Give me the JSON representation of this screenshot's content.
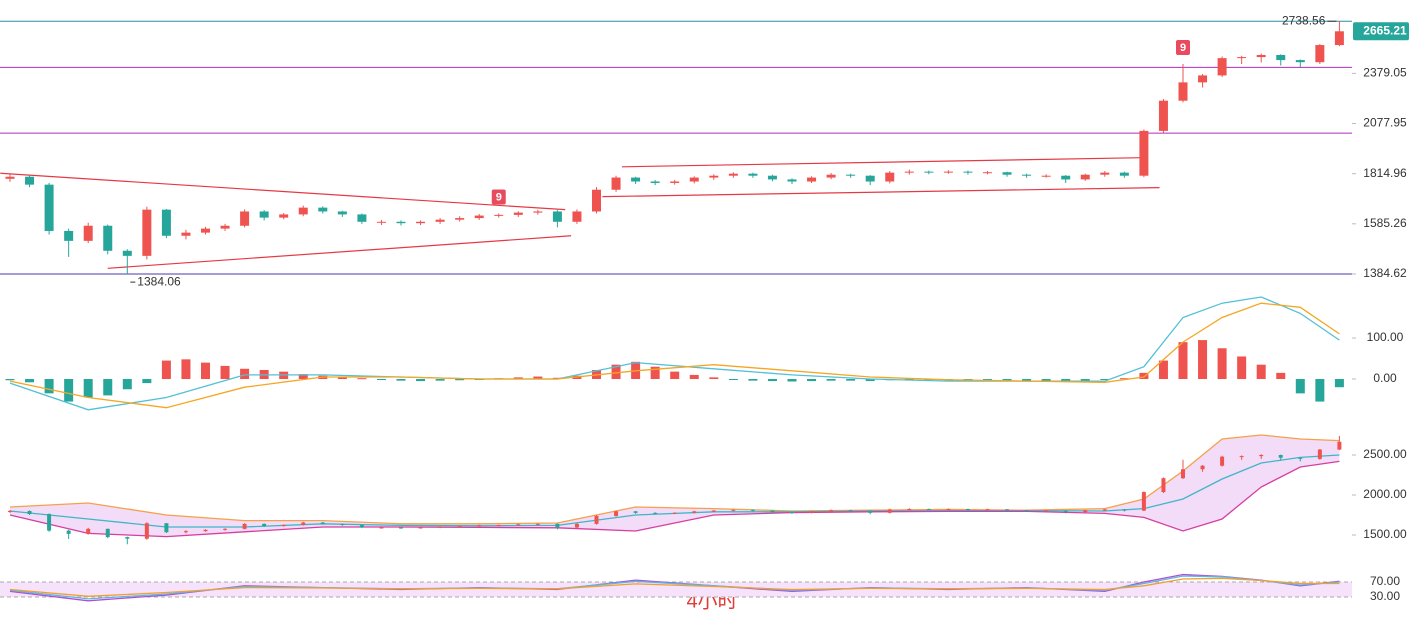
{
  "watermark": "4小时",
  "chart_data": [
    {
      "type": "candlestick",
      "log_scale": true,
      "ylim": [
        1326,
        2900
      ],
      "yticks": [
        1384.62,
        1585.26,
        1814.96,
        2077.95,
        2379.05
      ],
      "up_color": "#ef5350",
      "down_color": "#26a69a",
      "series": [
        {
          "open": [
            1790,
            1800,
            1762,
            1555,
            1514,
            1577,
            1474,
            1454,
            1647,
            1535,
            1548,
            1565,
            1577,
            1639,
            1612,
            1626,
            1656,
            1639,
            1626,
            1594,
            1594,
            1588,
            1594,
            1603,
            1610,
            1621,
            1624,
            1634,
            1639,
            1594,
            1639,
            1738,
            1796,
            1777,
            1770,
            1777,
            1796,
            1805,
            1815,
            1805,
            1787,
            1777,
            1796,
            1810,
            1805,
            1777,
            1820,
            1825,
            1822,
            1825,
            1820,
            1822,
            1810,
            1805,
            1805,
            1787,
            1810,
            1820,
            1805,
            2037,
            2210,
            2322,
            2366,
            2479,
            2486,
            2500,
            2466,
            2452,
            2568
          ],
          "high": [
            1812,
            1808,
            1770,
            1565,
            1590,
            1582,
            1480,
            1660,
            1650,
            1560,
            1572,
            1585,
            1648,
            1645,
            1632,
            1665,
            1662,
            1642,
            1630,
            1602,
            1600,
            1600,
            1610,
            1618,
            1628,
            1630,
            1640,
            1646,
            1645,
            1648,
            1750,
            1805,
            1800,
            1784,
            1785,
            1802,
            1812,
            1822,
            1820,
            1810,
            1792,
            1802,
            1818,
            1815,
            1808,
            1828,
            1835,
            1830,
            1832,
            1830,
            1828,
            1825,
            1815,
            1812,
            1808,
            1815,
            1828,
            1825,
            2045,
            2220,
            2440,
            2375,
            2490,
            2495,
            2510,
            2505,
            2470,
            2575,
            2738.56
          ],
          "low": [
            1775,
            1750,
            1540,
            1450,
            1505,
            1460,
            1384.06,
            1440,
            1525,
            1520,
            1540,
            1555,
            1570,
            1600,
            1605,
            1618,
            1630,
            1615,
            1585,
            1580,
            1578,
            1580,
            1585,
            1595,
            1602,
            1612,
            1615,
            1625,
            1570,
            1585,
            1630,
            1728,
            1765,
            1760,
            1762,
            1768,
            1785,
            1795,
            1795,
            1778,
            1765,
            1770,
            1788,
            1795,
            1760,
            1768,
            1810,
            1812,
            1815,
            1810,
            1812,
            1800,
            1795,
            1796,
            1770,
            1780,
            1800,
            1795,
            1798,
            2025,
            2200,
            2290,
            2355,
            2440,
            2450,
            2430,
            2420,
            2440,
            2560
          ],
          "close": [
            1800,
            1762,
            1555,
            1514,
            1577,
            1474,
            1454,
            1647,
            1535,
            1548,
            1565,
            1577,
            1639,
            1612,
            1626,
            1656,
            1639,
            1626,
            1594,
            1594,
            1588,
            1594,
            1603,
            1610,
            1621,
            1624,
            1634,
            1639,
            1594,
            1639,
            1738,
            1796,
            1777,
            1770,
            1777,
            1796,
            1805,
            1815,
            1805,
            1787,
            1777,
            1796,
            1810,
            1805,
            1777,
            1820,
            1825,
            1822,
            1825,
            1820,
            1822,
            1810,
            1805,
            1805,
            1787,
            1810,
            1820,
            1805,
            2037,
            2210,
            2322,
            2366,
            2479,
            2486,
            2500,
            2466,
            2452,
            2568,
            2665.21
          ]
        }
      ],
      "levels": [
        {
          "value": 2738.56,
          "color": "#2a8fa8"
        },
        {
          "value": 2418,
          "color": "#b02cc0"
        },
        {
          "value": 2025,
          "color": "#b02cc0"
        },
        {
          "value": 1384.62,
          "color": "#4a3aa8"
        }
      ],
      "trendlines": [
        {
          "x": [
            -0.5,
            28.4
          ],
          "y": [
            1817,
            1647
          ],
          "color": "#e53945"
        },
        {
          "x": [
            5,
            28.7
          ],
          "y": [
            1406,
            1535
          ],
          "color": "#e53945"
        },
        {
          "x": [
            31.3,
            57.9
          ],
          "y": [
            1849,
            1895
          ],
          "color": "#e53945"
        },
        {
          "x": [
            30.3,
            58.8
          ],
          "y": [
            1706,
            1748
          ],
          "color": "#e53945"
        }
      ],
      "annotations": [
        {
          "x": 68,
          "value": 2738.56
        },
        {
          "x": 6,
          "value": 1384.06
        }
      ],
      "markers": [
        {
          "x": 25,
          "label": "9",
          "color": "#e84a5f"
        },
        {
          "x": 60,
          "label": "9",
          "color": "#e84a5f"
        }
      ],
      "last_price": {
        "value": 2665.21,
        "color": "#26a69a"
      }
    },
    {
      "type": "macd",
      "ylim": [
        -100,
        205
      ],
      "yticks": [
        {
          "value": 100,
          "label": "100.00"
        },
        {
          "value": 0,
          "label": "0.00"
        }
      ],
      "histogram": {
        "up_color": "#ef5350",
        "down_color": "#26a69a",
        "values": [
          -3,
          -8,
          -35,
          -55,
          -45,
          -40,
          -25,
          -10,
          45,
          48,
          40,
          32,
          25,
          22,
          18,
          12,
          8,
          4,
          2,
          -2,
          -4,
          -5,
          -4,
          -3,
          -2,
          2,
          4,
          6,
          3,
          8,
          22,
          35,
          42,
          30,
          18,
          10,
          4,
          -2,
          -4,
          -5,
          -6,
          -5,
          -4,
          -4,
          -5,
          -3,
          -2,
          -2,
          -3,
          -3,
          -4,
          -4,
          -5,
          -6,
          -7,
          -5,
          -2,
          2,
          15,
          45,
          90,
          95,
          75,
          55,
          35,
          15,
          -35,
          -55,
          -20
        ]
      },
      "x": [
        0,
        4,
        8,
        12,
        16,
        20,
        24,
        28,
        32,
        36,
        40,
        44,
        48,
        52,
        56,
        58,
        60,
        62,
        64,
        66,
        68
      ],
      "series": [
        {
          "color": "#52c0d6",
          "values": [
            -10,
            -75,
            -45,
            10,
            10,
            5,
            0,
            0,
            40,
            25,
            10,
            0,
            -5,
            -5,
            -5,
            30,
            150,
            185,
            200,
            160,
            95
          ]
        },
        {
          "color": "#f5a623",
          "values": [
            -5,
            -45,
            -70,
            -20,
            5,
            5,
            0,
            0,
            20,
            35,
            20,
            5,
            -2,
            -5,
            -8,
            5,
            90,
            150,
            185,
            175,
            110
          ]
        }
      ]
    },
    {
      "type": "bollinger",
      "ylim": [
        1000,
        2875
      ],
      "yticks": [
        {
          "value": 2500,
          "label": "2500.00"
        },
        {
          "value": 2000,
          "label": "2000.00"
        },
        {
          "value": 1500,
          "label": "1500.00"
        }
      ],
      "fill": "#f3dcf8",
      "x": [
        0,
        4,
        8,
        12,
        16,
        20,
        24,
        28,
        32,
        36,
        40,
        44,
        48,
        52,
        56,
        58,
        60,
        62,
        64,
        66,
        68
      ],
      "series": [
        {
          "color": "#f5a04a",
          "values": [
            1850,
            1900,
            1750,
            1680,
            1680,
            1640,
            1640,
            1650,
            1850,
            1830,
            1800,
            1810,
            1820,
            1810,
            1830,
            1950,
            2300,
            2700,
            2750,
            2700,
            2680
          ]
        },
        {
          "color": "#3fb6c8",
          "values": [
            1800,
            1700,
            1600,
            1600,
            1640,
            1620,
            1615,
            1620,
            1750,
            1790,
            1790,
            1800,
            1805,
            1805,
            1800,
            1830,
            1950,
            2200,
            2400,
            2470,
            2500
          ]
        },
        {
          "color": "#d63ea0",
          "values": [
            1750,
            1520,
            1480,
            1540,
            1600,
            1600,
            1595,
            1590,
            1550,
            1750,
            1780,
            1790,
            1795,
            1795,
            1770,
            1720,
            1550,
            1700,
            2100,
            2350,
            2420
          ]
        }
      ]
    },
    {
      "type": "rsi",
      "ylim": [
        0,
        100
      ],
      "yticks": [
        {
          "value": 70,
          "label": "70.00"
        },
        {
          "value": 30,
          "label": "30.00"
        }
      ],
      "fill": "#f6e2fa",
      "x": [
        0,
        4,
        8,
        12,
        16,
        20,
        24,
        28,
        32,
        36,
        40,
        44,
        48,
        52,
        56,
        58,
        60,
        62,
        64,
        66,
        68
      ],
      "series": [
        {
          "color": "#b04fd0",
          "values": [
            45,
            20,
            35,
            60,
            55,
            50,
            55,
            50,
            75,
            60,
            45,
            55,
            50,
            55,
            45,
            70,
            90,
            85,
            75,
            60,
            72
          ]
        },
        {
          "color": "#5ab8e0",
          "values": [
            48,
            25,
            38,
            58,
            55,
            52,
            54,
            52,
            72,
            60,
            48,
            54,
            52,
            54,
            48,
            66,
            86,
            84,
            74,
            62,
            70
          ]
        },
        {
          "color": "#f0a030",
          "values": [
            50,
            32,
            42,
            55,
            54,
            52,
            53,
            52,
            65,
            58,
            50,
            53,
            52,
            53,
            50,
            60,
            78,
            80,
            74,
            66,
            66
          ]
        }
      ]
    }
  ]
}
